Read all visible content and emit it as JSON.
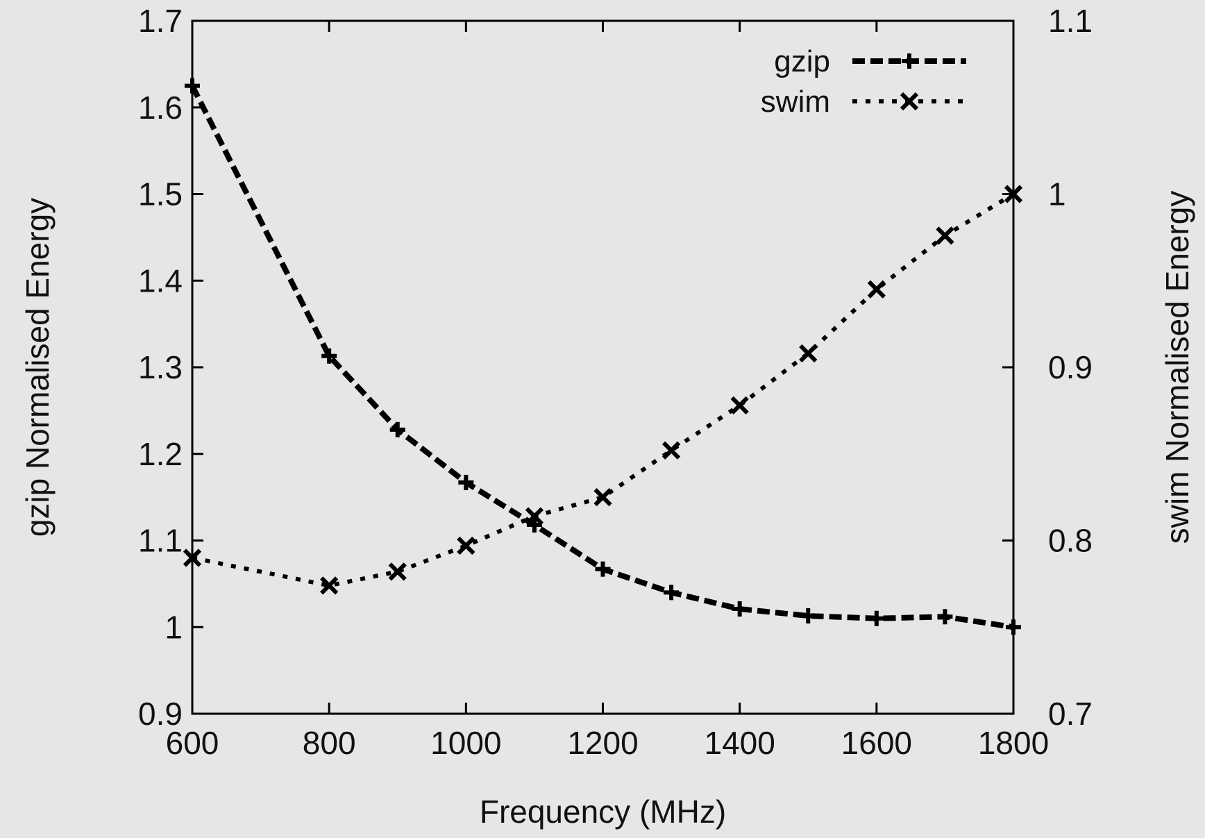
{
  "background_color": "#e6e6e6",
  "chart_data": {
    "type": "line",
    "title": "",
    "xlabel": "Frequency (MHz)",
    "ylabel": "gzip Normalised Energy",
    "y2label": "swim Normalised Energy",
    "xlim": [
      600,
      1800
    ],
    "ylim": [
      0.9,
      1.7
    ],
    "y2lim": [
      0.7,
      1.1
    ],
    "x_ticks": [
      "600",
      "800",
      "1000",
      "1200",
      "1400",
      "1600",
      "1800"
    ],
    "y_ticks": [
      "0.9",
      "1",
      "1.1",
      "1.2",
      "1.3",
      "1.4",
      "1.5",
      "1.6",
      "1.7"
    ],
    "y2_ticks": [
      "0.7",
      "0.8",
      "0.9",
      "1",
      "1.1"
    ],
    "grid": false,
    "legend_position": "top-right",
    "series": [
      {
        "name": "gzip",
        "axis": "left",
        "line_style": "dashed",
        "marker": "plus",
        "color": "#000000",
        "points": [
          [
            600,
            1.625
          ],
          [
            800,
            1.313
          ],
          [
            900,
            1.228
          ],
          [
            1000,
            1.167
          ],
          [
            1100,
            1.118
          ],
          [
            1200,
            1.067
          ],
          [
            1300,
            1.04
          ],
          [
            1400,
            1.021
          ],
          [
            1500,
            1.013
          ],
          [
            1600,
            1.01
          ],
          [
            1700,
            1.012
          ],
          [
            1800,
            1.0
          ]
        ]
      },
      {
        "name": "swim",
        "axis": "right",
        "line_style": "dotted",
        "marker": "x",
        "color": "#000000",
        "points": [
          [
            600,
            0.79
          ],
          [
            800,
            0.774
          ],
          [
            900,
            0.782
          ],
          [
            1000,
            0.797
          ],
          [
            1100,
            0.814
          ],
          [
            1200,
            0.825
          ],
          [
            1300,
            0.852
          ],
          [
            1400,
            0.878
          ],
          [
            1500,
            0.908
          ],
          [
            1600,
            0.945
          ],
          [
            1700,
            0.976
          ],
          [
            1800,
            1.0
          ]
        ]
      }
    ]
  }
}
